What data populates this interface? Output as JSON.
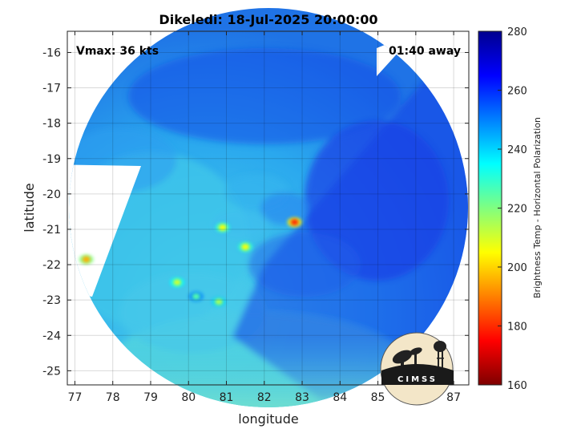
{
  "chart_data": {
    "type": "heatmap",
    "title": "Dikeledi: 18-Jul-2025 20:00:00",
    "xlabel": "longitude",
    "ylabel": "latitude",
    "xlim": [
      76.8,
      87.4
    ],
    "ylim": [
      -25.4,
      -15.4
    ],
    "xticks": [
      "77",
      "78",
      "79",
      "80",
      "81",
      "82",
      "83",
      "84",
      "85",
      "86",
      "87"
    ],
    "yticks": [
      "-16",
      "-17",
      "-18",
      "-19",
      "-20",
      "-21",
      "-22",
      "-23",
      "-24",
      "-25"
    ],
    "grid": true,
    "annotations": {
      "vmax": "Vmax: 36 kts",
      "time_away": "01:40 away"
    },
    "colorbar": {
      "label": "Brightness Temp - Horizontal Polarization",
      "range": [
        160,
        280
      ],
      "ticks": [
        "280",
        "260",
        "240",
        "220",
        "200",
        "180",
        "160"
      ],
      "colormap": [
        "#7f0000",
        "#ff0000",
        "#ff8000",
        "#ffff00",
        "#80ff80",
        "#00ffff",
        "#0080ff",
        "#0000ff",
        "#00008f"
      ]
    },
    "swath": {
      "center": [
        82,
        -20.5
      ],
      "radius_deg": 5.0
    },
    "features": [
      {
        "lon": 77.3,
        "lat": -21.85,
        "tb": 195
      },
      {
        "lon": 80.9,
        "lat": -20.95,
        "tb": 205
      },
      {
        "lon": 81.5,
        "lat": -21.5,
        "tb": 205
      },
      {
        "lon": 82.8,
        "lat": -20.8,
        "tb": 180
      },
      {
        "lon": 79.7,
        "lat": -22.5,
        "tb": 210
      },
      {
        "lon": 80.2,
        "lat": -22.9,
        "tb": 225
      },
      {
        "lon": 80.8,
        "lat": -23.05,
        "tb": 215
      }
    ]
  },
  "logo": {
    "text": "CIMSS"
  }
}
